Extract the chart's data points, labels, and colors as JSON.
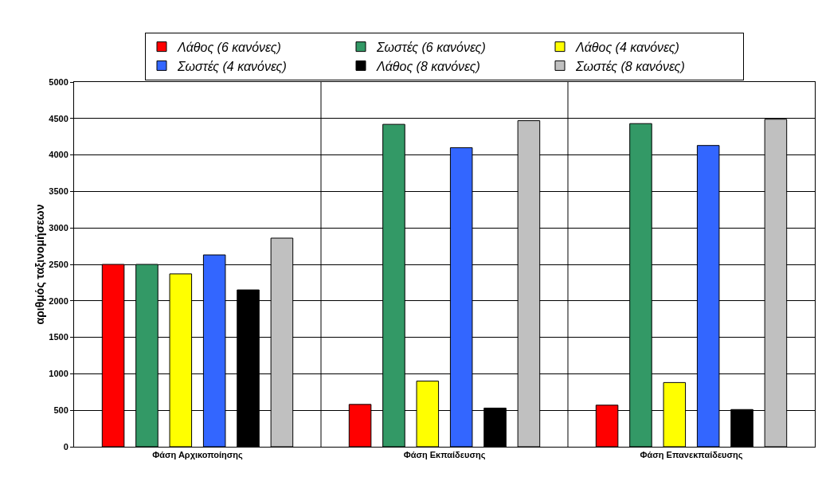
{
  "chart_data": {
    "type": "bar",
    "ylabel": "αριθμός ταξινομήσεων",
    "categories": [
      "Φάση Αρχικοποίησης",
      "Φάση Εκπαίδευσης",
      "Φάση Επανεκπαίδευσης"
    ],
    "series": [
      {
        "name": "Λάθος (6 κανόνες)",
        "color": "#ff0000",
        "values": [
          2500,
          580,
          570
        ]
      },
      {
        "name": "Σωστές (6 κανόνες)",
        "color": "#339966",
        "values": [
          2500,
          4420,
          4430
        ]
      },
      {
        "name": "Λάθος (4 κανόνες)",
        "color": "#ffff00",
        "values": [
          2370,
          900,
          880
        ]
      },
      {
        "name": "Σωστές (4 κανόνες)",
        "color": "#3366ff",
        "values": [
          2630,
          4100,
          4130
        ]
      },
      {
        "name": "Λάθος (8 κανόνες)",
        "color": "#000000",
        "values": [
          2150,
          530,
          510
        ]
      },
      {
        "name": "Σωστές (8 κανόνες)",
        "color": "#c0c0c0",
        "values": [
          2860,
          4470,
          4490
        ]
      }
    ],
    "ylim": [
      0,
      5000
    ],
    "yticks": [
      0,
      500,
      1000,
      1500,
      2000,
      2500,
      3000,
      3500,
      4000,
      4500,
      5000
    ],
    "grid": true,
    "legend": "top"
  }
}
